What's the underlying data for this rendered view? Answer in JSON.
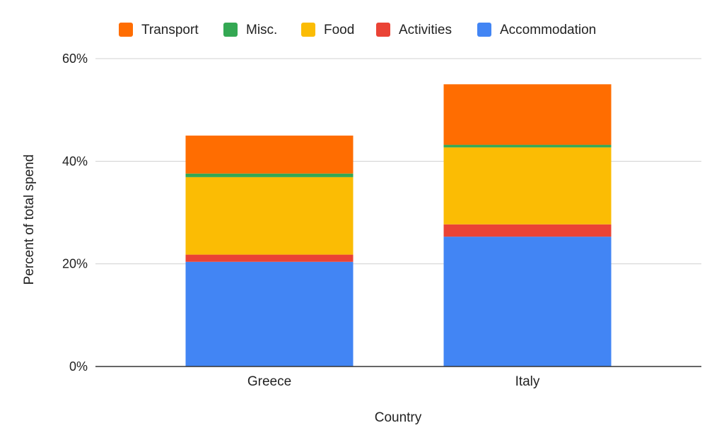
{
  "chart_data": {
    "type": "bar",
    "stacked": true,
    "categories": [
      "Greece",
      "Italy"
    ],
    "series": [
      {
        "name": "Accommodation",
        "color": "#4285f4",
        "values": [
          20.4,
          25.3
        ]
      },
      {
        "name": "Activities",
        "color": "#ea4335",
        "values": [
          1.4,
          2.4
        ]
      },
      {
        "name": "Food",
        "color": "#fbbc04",
        "values": [
          15.1,
          15.0
        ]
      },
      {
        "name": "Misc.",
        "color": "#34a853",
        "values": [
          0.7,
          0.5
        ]
      },
      {
        "name": "Transport",
        "color": "#ff6d01",
        "values": [
          7.4,
          11.8
        ]
      }
    ],
    "legend_order": [
      "Transport",
      "Misc.",
      "Food",
      "Activities",
      "Accommodation"
    ],
    "legend_position": "top",
    "xlabel": "Country",
    "ylabel": "Percent of total spend",
    "ylim": [
      0,
      60
    ],
    "yticks": [
      "0%",
      "20%",
      "40%",
      "60%"
    ],
    "grid": true
  }
}
